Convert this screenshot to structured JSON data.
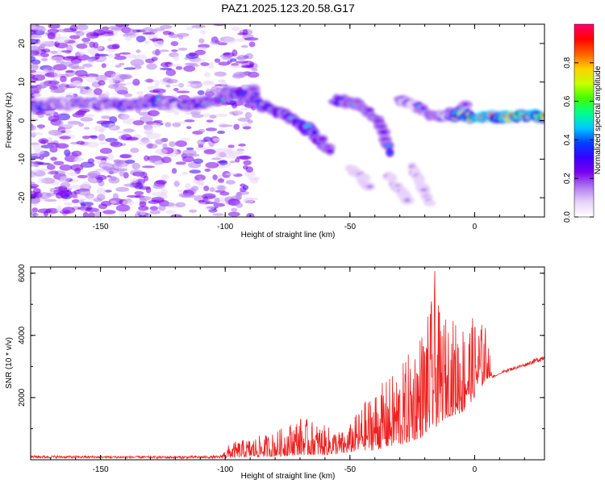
{
  "title": "PAZ1.2025.123.20.58.G17",
  "chart_data": [
    {
      "type": "heatmap",
      "title": "PAZ1.2025.123.20.58.G17",
      "xlabel": "Height of straight line (km)",
      "ylabel": "Frequency (Hz)",
      "xlim": [
        -178,
        28
      ],
      "ylim": [
        -25,
        25
      ],
      "xticks": [
        -150,
        -100,
        -50,
        0
      ],
      "xtick_labels": [
        "-150",
        "-100",
        "-50",
        "0"
      ],
      "yticks": [
        -20,
        -10,
        0,
        10,
        20
      ],
      "ytick_labels": [
        "-20",
        "-10",
        "0",
        "10",
        "20"
      ],
      "colorbar": {
        "label": "Normalized spectral amplitude",
        "range": [
          0,
          1
        ],
        "ticks": [
          0.0,
          0.2,
          0.4,
          0.6,
          0.8
        ],
        "tick_labels": [
          "0.0",
          "0.2",
          "0.4",
          "0.6",
          "0.8"
        ],
        "colors": [
          "#ffffff",
          "#e8d4fa",
          "#b27cf0",
          "#7a00ef",
          "#3a00ff",
          "#0040ff",
          "#00c8ff",
          "#00ff90",
          "#40ff00",
          "#c8ff00",
          "#ffd000",
          "#ff6000",
          "#ff0000",
          "#ff0070"
        ]
      },
      "ridges": [
        {
          "x": [
            -178,
            -165,
            -150,
            -140,
            -125,
            -115,
            -105,
            -95,
            -88
          ],
          "y": [
            3.5,
            4.5,
            4.5,
            4,
            5,
            4,
            5,
            7,
            7.5
          ],
          "peak": 0.35
        },
        {
          "x": [
            -100,
            -95,
            -85,
            -75,
            -65,
            -58
          ],
          "y": [
            7.5,
            7,
            4,
            1,
            -3,
            -7.5
          ],
          "peak": 0.42
        },
        {
          "x": [
            -56,
            -45,
            -38,
            -34
          ],
          "y": [
            5.5,
            4,
            -1,
            -7.5
          ],
          "peak": 0.35
        },
        {
          "x": [
            -30,
            -22,
            -15,
            -8,
            -3
          ],
          "y": [
            5.5,
            3,
            1,
            2,
            3.5
          ],
          "peak": 0.32
        },
        {
          "x": [
            -8,
            0,
            10,
            20,
            28
          ],
          "y": [
            1.5,
            0.8,
            1,
            1.2,
            1
          ],
          "peak": 0.95
        },
        {
          "x": [
            -50,
            -42
          ],
          "y": [
            -12,
            -17
          ],
          "peak": 0.15
        },
        {
          "x": [
            -35,
            -27
          ],
          "y": [
            -14,
            -20
          ],
          "peak": 0.15
        },
        {
          "x": [
            -25,
            -18
          ],
          "y": [
            -12,
            -21
          ],
          "peak": 0.15
        }
      ]
    },
    {
      "type": "line",
      "xlabel": "Height of straight line (km)",
      "ylabel": "SNR (10 * v/v)",
      "xlim": [
        -178,
        28
      ],
      "ylim": [
        0,
        6200
      ],
      "xticks": [
        -150,
        -100,
        -50,
        0
      ],
      "xtick_labels": [
        "-150",
        "-100",
        "-50",
        "0"
      ],
      "yticks": [
        2000,
        4000,
        6000
      ],
      "ytick_labels": [
        "2000",
        "4000",
        "6000"
      ],
      "series": [
        {
          "name": "SNR",
          "color": "#ef2020",
          "envelope_x": [
            -178,
            -150,
            -120,
            -102,
            -98,
            -90,
            -80,
            -70,
            -60,
            -52,
            -45,
            -40,
            -35,
            -28,
            -22,
            -18,
            -16,
            -14,
            -10,
            -5,
            0,
            5,
            7,
            12,
            20,
            28
          ],
          "envelope_y": [
            150,
            130,
            130,
            140,
            550,
            700,
            900,
            1400,
            1100,
            900,
            1800,
            2300,
            2600,
            3200,
            4200,
            4800,
            6100,
            4700,
            4600,
            4500,
            4600,
            4300,
            2600,
            2900,
            3100,
            3400
          ],
          "floor_y": [
            50,
            50,
            40,
            40,
            60,
            80,
            100,
            150,
            150,
            200,
            300,
            300,
            400,
            500,
            700,
            900,
            1000,
            1200,
            1400,
            1500,
            2000,
            2600,
            2700,
            2800,
            3000,
            3200
          ]
        }
      ]
    }
  ]
}
